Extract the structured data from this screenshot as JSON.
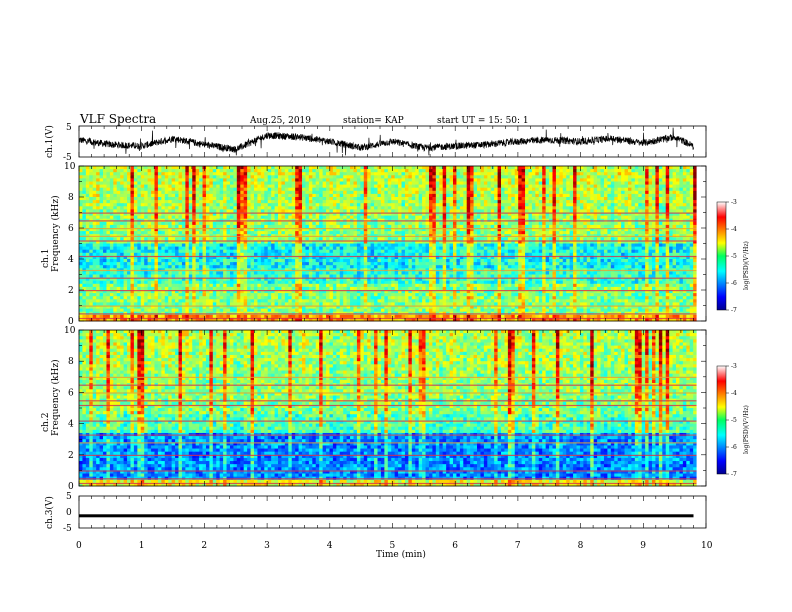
{
  "header": {
    "title": "VLF Spectra",
    "date": "Aug.25, 2019",
    "station": "station= KAP",
    "start": "start  UT =   15: 50: 1"
  },
  "chart_data": [
    {
      "panel": "ch1-waveform",
      "type": "line",
      "ylabel": "ch.1(V)",
      "ylim": [
        -5,
        5
      ],
      "yticks": [
        "5",
        "-5"
      ],
      "xlim": [
        0,
        10
      ],
      "approx_series_description_values": {
        "x_min": [
          0.0,
          0.5,
          1.0,
          1.5,
          2.0,
          2.5,
          3.0,
          3.5,
          4.0,
          4.5,
          5.0,
          5.5,
          6.0,
          6.5,
          7.0,
          7.5,
          8.0,
          8.5,
          9.0,
          9.5,
          9.8
        ],
        "y_V": [
          0.5,
          -1.0,
          -1.5,
          1.0,
          -1.0,
          -2.5,
          2.0,
          1.5,
          0.0,
          -2.0,
          0.0,
          -2.0,
          -1.5,
          -1.0,
          0.0,
          0.5,
          0.0,
          1.0,
          -0.5,
          1.5,
          -1.5
        ]
      }
    },
    {
      "panel": "ch1-spectrogram",
      "type": "heatmap",
      "ylabel_top": "ch.1",
      "ylabel": "Frequency  (kHz)",
      "ylim": [
        0,
        10
      ],
      "yticks": [
        "0",
        "2",
        "4",
        "6",
        "8",
        "10"
      ],
      "xlim": [
        0,
        10
      ],
      "colorbar": {
        "label": "log(PSD)(V²/Hz)",
        "range": [
          -7,
          -3
        ],
        "ticks": [
          "-3",
          "-4",
          "-5",
          "-6",
          "-7"
        ]
      }
    },
    {
      "panel": "ch2-spectrogram",
      "type": "heatmap",
      "ylabel_top": "ch.2",
      "ylabel": "Frequency  (kHz)",
      "ylim": [
        0,
        10
      ],
      "yticks": [
        "0",
        "2",
        "4",
        "6",
        "8",
        "10"
      ],
      "xlim": [
        0,
        10
      ],
      "colorbar": {
        "label": "log(PSD)(V²/Hz)",
        "range": [
          -7,
          -3
        ],
        "ticks": [
          "-3",
          "-4",
          "-5",
          "-6",
          "-7"
        ]
      }
    },
    {
      "panel": "ch3-waveform",
      "type": "line",
      "ylabel": "ch.3(V)",
      "ylim": [
        -5,
        5
      ],
      "yticks": [
        "5",
        "0",
        "-5"
      ],
      "xlim": [
        0,
        10
      ],
      "xticks": [
        "0",
        "1",
        "2",
        "3",
        "4",
        "5",
        "6",
        "7",
        "8",
        "9",
        "10"
      ],
      "xlabel": "Time  (min)",
      "series_values": {
        "x_min": [
          0,
          9.8
        ],
        "y_V": [
          -1.2,
          -1.2
        ]
      }
    }
  ]
}
